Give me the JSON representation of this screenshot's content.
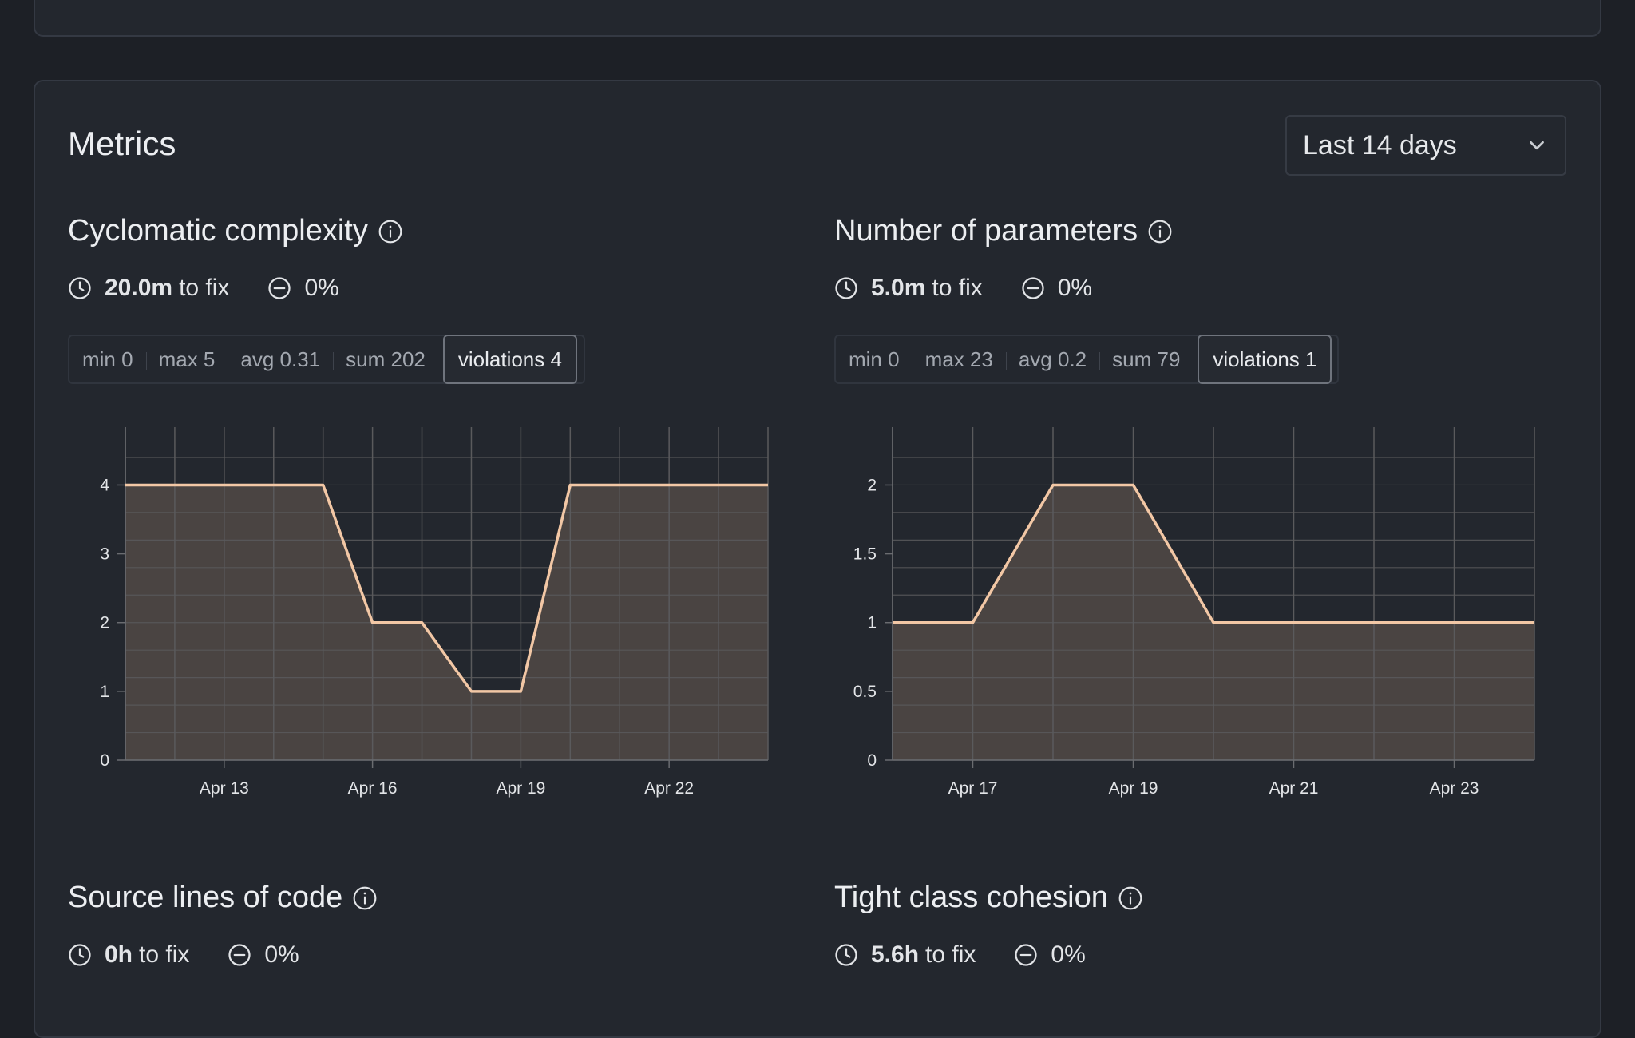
{
  "header": {
    "title": "Metrics",
    "range_select": {
      "value": "Last 14 days"
    }
  },
  "metrics": [
    {
      "title": "Cyclomatic complexity",
      "time_to_fix": "20.0m",
      "to_fix_label": "to fix",
      "change": "0%",
      "stats": {
        "min": "min 0",
        "max": "max 5",
        "avg": "avg 0.31",
        "sum": "sum 202",
        "violations": "violations 4"
      }
    },
    {
      "title": "Number of parameters",
      "time_to_fix": "5.0m",
      "to_fix_label": "to fix",
      "change": "0%",
      "stats": {
        "min": "min 0",
        "max": "max 23",
        "avg": "avg 0.2",
        "sum": "sum 79",
        "violations": "violations 1"
      }
    },
    {
      "title": "Source lines of code",
      "time_to_fix": "0h",
      "to_fix_label": "to fix",
      "change": "0%"
    },
    {
      "title": "Tight class cohesion",
      "time_to_fix": "5.6h",
      "to_fix_label": "to fix",
      "change": "0%"
    }
  ],
  "colors": {
    "line": "#f2c7a5",
    "area": "#4a4442",
    "grid": "#5a5a5c",
    "background": "#1d2026",
    "card": "#23272e"
  },
  "icons": {
    "info": "info-circle-icon",
    "clock": "clock-icon",
    "change": "minus-circle-icon",
    "dropdown": "chevron-down-icon"
  },
  "chart_data": [
    {
      "type": "area",
      "x": [
        "Apr 11",
        "Apr 12",
        "Apr 13",
        "Apr 14",
        "Apr 15",
        "Apr 16",
        "Apr 17",
        "Apr 18",
        "Apr 19",
        "Apr 20",
        "Apr 21",
        "Apr 22",
        "Apr 23",
        "Apr 24"
      ],
      "values": [
        4,
        4,
        4,
        4,
        4,
        2,
        2,
        1,
        1,
        4,
        4,
        4,
        4,
        4
      ],
      "xticks": [
        "Apr 13",
        "Apr 16",
        "Apr 19",
        "Apr 22"
      ],
      "yticks": [
        "0",
        "1",
        "2",
        "3",
        "4"
      ],
      "ylim": [
        0,
        4.4
      ],
      "grid": true
    },
    {
      "type": "area",
      "x": [
        "Apr 16",
        "Apr 17",
        "Apr 18",
        "Apr 19",
        "Apr 20",
        "Apr 21",
        "Apr 22",
        "Apr 23",
        "Apr 24"
      ],
      "values": [
        1,
        1,
        2,
        2,
        1,
        1,
        1,
        1,
        1
      ],
      "xticks": [
        "Apr 17",
        "Apr 19",
        "Apr 21",
        "Apr 23"
      ],
      "yticks": [
        "0",
        "0.5",
        "1",
        "1.5",
        "2"
      ],
      "ylim": [
        0,
        2.2
      ],
      "grid": true
    }
  ]
}
